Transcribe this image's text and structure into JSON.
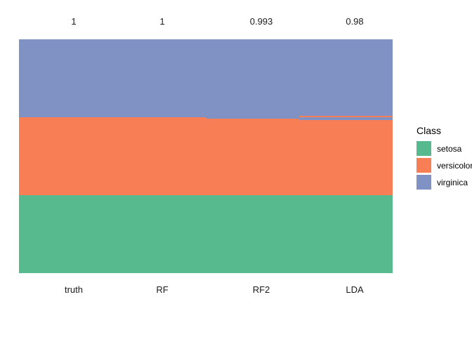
{
  "chart_data": {
    "type": "bar",
    "subtype": "stacked-class-composition",
    "title": "",
    "xlabel": "",
    "ylabel": "",
    "grid": false,
    "categories": [
      "truth",
      "RF",
      "RF2",
      "LDA"
    ],
    "accuracy_labels": [
      "1",
      "1",
      "0.993",
      "0.98"
    ],
    "total_samples": 150,
    "classes": [
      {
        "name": "setosa",
        "color": "#57BA8F"
      },
      {
        "name": "versicolor",
        "color": "#F87E55"
      },
      {
        "name": "virginica",
        "color": "#8091C3"
      }
    ],
    "columns": [
      {
        "label": "truth",
        "accuracy": "1",
        "segments": [
          {
            "class": "virginica",
            "count": 50
          },
          {
            "class": "versicolor",
            "count": 50
          },
          {
            "class": "setosa",
            "count": 50
          }
        ]
      },
      {
        "label": "RF",
        "accuracy": "1",
        "segments": [
          {
            "class": "virginica",
            "count": 50
          },
          {
            "class": "versicolor",
            "count": 50
          },
          {
            "class": "setosa",
            "count": 50
          }
        ]
      },
      {
        "label": "RF2",
        "accuracy": "0.993",
        "segments": [
          {
            "class": "virginica",
            "count": 51
          },
          {
            "class": "versicolor",
            "count": 49
          },
          {
            "class": "setosa",
            "count": 50
          }
        ]
      },
      {
        "label": "LDA",
        "accuracy": "0.98",
        "segments": [
          {
            "class": "virginica",
            "count": 49
          },
          {
            "class": "versicolor",
            "count": 1
          },
          {
            "class": "virginica",
            "count": 2
          },
          {
            "class": "versicolor",
            "count": 48
          },
          {
            "class": "setosa",
            "count": 50
          }
        ]
      }
    ],
    "legend": {
      "title": "Class",
      "position": "right",
      "entries": [
        "setosa",
        "versicolor",
        "virginica"
      ]
    }
  }
}
